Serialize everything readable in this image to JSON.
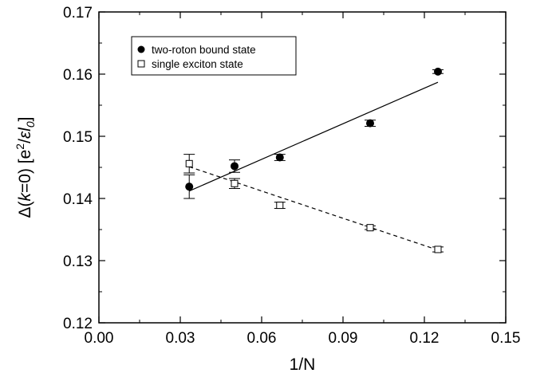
{
  "chart_data": {
    "type": "scatter",
    "xlabel": "1/N",
    "ylabel": {
      "prefix": "Δ(",
      "k": "k",
      "mid": "=0) [e",
      "sup": "2",
      "slash": "/",
      "eps": "ε",
      "l": "l",
      "sub": "0",
      "close": "]"
    },
    "xlim": [
      0.0,
      0.15
    ],
    "ylim": [
      0.12,
      0.17
    ],
    "xticks": [
      "0.00",
      "0.03",
      "0.06",
      "0.09",
      "0.12",
      "0.15"
    ],
    "yticks": [
      "0.12",
      "0.13",
      "0.14",
      "0.15",
      "0.16",
      "0.17"
    ],
    "xtick_values": [
      0.0,
      0.03,
      0.06,
      0.09,
      0.12,
      0.15
    ],
    "ytick_values": [
      0.12,
      0.13,
      0.14,
      0.15,
      0.16,
      0.17
    ],
    "legend_position": "top-left",
    "series": [
      {
        "name": "two-roton bound state",
        "marker": "filled-circle",
        "x": [
          0.0333,
          0.05,
          0.0667,
          0.1,
          0.125
        ],
        "y": [
          0.1419,
          0.1452,
          0.1466,
          0.1521,
          0.1604
        ],
        "err": [
          0.0019,
          0.001,
          0.0005,
          0.0005,
          0.0003
        ],
        "fit": {
          "style": "solid",
          "x": [
            0.0333,
            0.125
          ],
          "y": [
            0.1412,
            0.1587
          ]
        }
      },
      {
        "name": "single exciton state",
        "marker": "open-square",
        "x": [
          0.0333,
          0.05,
          0.0667,
          0.1,
          0.125
        ],
        "y": [
          0.1456,
          0.1424,
          0.1389,
          0.1353,
          0.1318
        ],
        "err": [
          0.0015,
          0.0008,
          0.0005,
          0.0003,
          0.0004
        ],
        "fit": {
          "style": "dashed",
          "x": [
            0.0333,
            0.125
          ],
          "y": [
            0.1451,
            0.1317
          ]
        }
      }
    ]
  }
}
